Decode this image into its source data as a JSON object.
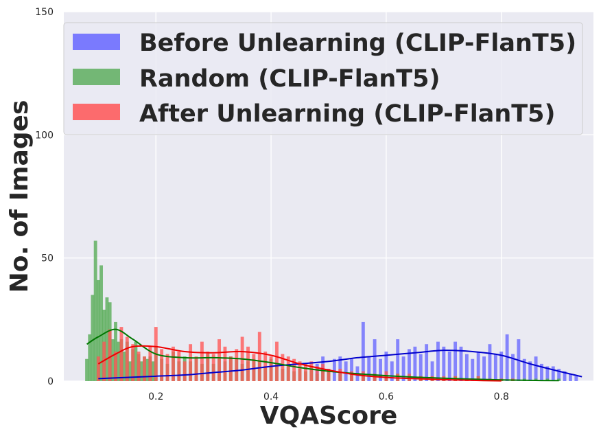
{
  "chart_data": {
    "type": "bar",
    "xlabel": "VQAScore",
    "ylabel": "No. of Images",
    "xlim": [
      0.04,
      0.96
    ],
    "ylim": [
      0,
      150
    ],
    "xticks": [
      0.2,
      0.4,
      0.6,
      0.8
    ],
    "xtick_labels": [
      "0.2",
      "0.4",
      "0.6",
      "0.8"
    ],
    "yticks": [
      0,
      50,
      100,
      150
    ],
    "ytick_labels": [
      "0",
      "50",
      "100",
      "150"
    ],
    "grid": true,
    "legend_position": "top",
    "series": [
      {
        "name": "Before Unlearning (CLIP-FlanT5)",
        "bar_color": "#6666ff",
        "kde_color": "#0000cc",
        "x": [
          0.48,
          0.49,
          0.5,
          0.51,
          0.52,
          0.53,
          0.54,
          0.55,
          0.56,
          0.57,
          0.58,
          0.59,
          0.6,
          0.61,
          0.62,
          0.63,
          0.64,
          0.65,
          0.66,
          0.67,
          0.68,
          0.69,
          0.7,
          0.71,
          0.72,
          0.73,
          0.74,
          0.75,
          0.76,
          0.77,
          0.78,
          0.79,
          0.8,
          0.81,
          0.82,
          0.83,
          0.84,
          0.85,
          0.86,
          0.87,
          0.88,
          0.89,
          0.9,
          0.91,
          0.92,
          0.93
        ],
        "values": [
          7,
          10,
          5,
          9,
          10,
          8,
          9,
          6,
          24,
          10,
          17,
          9,
          12,
          8,
          17,
          10,
          13,
          14,
          11,
          15,
          8,
          16,
          14,
          12,
          16,
          14,
          11,
          9,
          12,
          10,
          15,
          11,
          12,
          19,
          11,
          17,
          9,
          8,
          10,
          7,
          6,
          6,
          5,
          4,
          3,
          2
        ],
        "kde_x": [
          0.1,
          0.15,
          0.2,
          0.25,
          0.3,
          0.35,
          0.4,
          0.45,
          0.5,
          0.55,
          0.6,
          0.65,
          0.7,
          0.75,
          0.8,
          0.85,
          0.9,
          0.94
        ],
        "kde_y": [
          1,
          1.5,
          2,
          2.5,
          3.5,
          4.5,
          6,
          7,
          8,
          9.5,
          10.5,
          11.5,
          12.5,
          12,
          10.5,
          7,
          4,
          1.8
        ]
      },
      {
        "name": "Random (CLIP-FlanT5)",
        "bar_color": "#55aa55",
        "kde_color": "#007700",
        "x": [
          0.08,
          0.085,
          0.09,
          0.095,
          0.1,
          0.105,
          0.11,
          0.115,
          0.12,
          0.125,
          0.13,
          0.135,
          0.14,
          0.145,
          0.15,
          0.155,
          0.16,
          0.165,
          0.17,
          0.175,
          0.18,
          0.185,
          0.19,
          0.195,
          0.2,
          0.21,
          0.22,
          0.23,
          0.24,
          0.25,
          0.26,
          0.27,
          0.28,
          0.29,
          0.3,
          0.31,
          0.32,
          0.33,
          0.34,
          0.35,
          0.36,
          0.37,
          0.38,
          0.39,
          0.4,
          0.41,
          0.42,
          0.43,
          0.44,
          0.45,
          0.46,
          0.47,
          0.48,
          0.49,
          0.5,
          0.52,
          0.54,
          0.56,
          0.58,
          0.6,
          0.62,
          0.64,
          0.66,
          0.68,
          0.7,
          0.72,
          0.74,
          0.76,
          0.78,
          0.8,
          0.82,
          0.84,
          0.86,
          0.88,
          0.9
        ],
        "values": [
          9,
          19,
          35,
          57,
          41,
          47,
          29,
          34,
          32,
          17,
          24,
          16,
          17,
          12,
          16,
          8,
          13,
          16,
          11,
          8,
          10,
          9,
          10,
          8,
          14,
          9,
          7,
          12,
          8,
          10,
          8,
          9,
          7,
          11,
          7,
          9,
          8,
          10,
          9,
          7,
          8,
          9,
          8,
          6,
          9,
          7,
          5,
          6,
          4,
          5,
          4,
          6,
          3,
          4,
          4,
          3,
          3,
          2,
          3,
          2,
          3,
          2,
          2,
          2,
          1,
          2,
          1,
          2,
          1,
          1,
          1,
          1,
          1,
          1,
          1
        ],
        "kde_x": [
          0.08,
          0.1,
          0.13,
          0.16,
          0.2,
          0.25,
          0.3,
          0.35,
          0.4,
          0.45,
          0.5,
          0.55,
          0.6,
          0.65,
          0.7,
          0.75,
          0.8,
          0.85,
          0.9
        ],
        "kde_y": [
          15,
          18,
          21,
          17,
          11,
          9.5,
          9.5,
          9,
          7.5,
          5.5,
          4,
          3,
          2.2,
          1.6,
          1.2,
          0.8,
          0.5,
          0.3,
          0.2
        ]
      },
      {
        "name": "After Unlearning (CLIP-FlanT5)",
        "bar_color": "#ff5555",
        "kde_color": "#ee0000",
        "x": [
          0.1,
          0.11,
          0.12,
          0.13,
          0.14,
          0.15,
          0.16,
          0.17,
          0.18,
          0.19,
          0.2,
          0.21,
          0.22,
          0.23,
          0.24,
          0.25,
          0.26,
          0.27,
          0.28,
          0.29,
          0.3,
          0.31,
          0.32,
          0.33,
          0.34,
          0.35,
          0.36,
          0.37,
          0.38,
          0.39,
          0.4,
          0.41,
          0.42,
          0.43,
          0.44,
          0.45,
          0.46,
          0.47,
          0.48,
          0.49,
          0.5,
          0.52,
          0.54,
          0.56,
          0.58,
          0.6,
          0.62,
          0.64,
          0.66,
          0.68,
          0.7,
          0.72,
          0.74,
          0.76,
          0.78,
          0.8,
          0.82
        ],
        "values": [
          10,
          16,
          21,
          12,
          22,
          18,
          15,
          12,
          10,
          14,
          22,
          13,
          11,
          14,
          12,
          8,
          15,
          10,
          16,
          12,
          11,
          17,
          14,
          10,
          13,
          18,
          14,
          11,
          20,
          12,
          10,
          16,
          11,
          10,
          9,
          8,
          7,
          8,
          6,
          7,
          5,
          5,
          4,
          4,
          3,
          4,
          3,
          3,
          2,
          2,
          2,
          2,
          1,
          2,
          1,
          1,
          1
        ],
        "kde_x": [
          0.1,
          0.13,
          0.16,
          0.2,
          0.25,
          0.3,
          0.35,
          0.4,
          0.45,
          0.5,
          0.55,
          0.6,
          0.65,
          0.7,
          0.75,
          0.8
        ],
        "kde_y": [
          7,
          11,
          14,
          14,
          12,
          11.5,
          12,
          10.5,
          7,
          4.5,
          2.5,
          1.5,
          1,
          0.6,
          0.3,
          0.1
        ]
      }
    ]
  }
}
